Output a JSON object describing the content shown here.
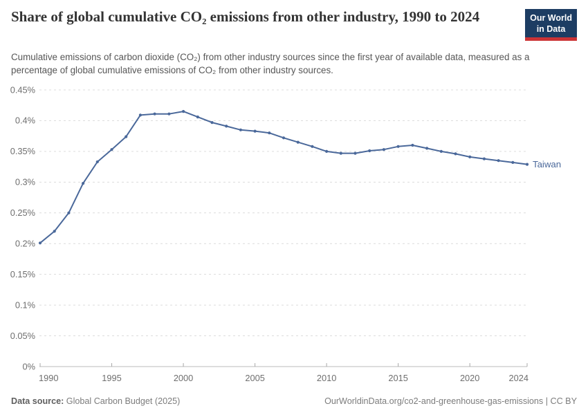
{
  "header": {
    "title": "Share of global cumulative CO₂ emissions from other industry, 1990 to 2024",
    "subtitle": "Cumulative emissions of carbon dioxide (CO₂) from other industry sources since the first year of available data, measured as a percentage of global cumulative emissions of CO₂ from other industry sources."
  },
  "logo": {
    "line1": "Our World",
    "line2": "in Data",
    "bg_color": "#1d3d63",
    "accent_color": "#cb3335"
  },
  "chart_data": {
    "type": "line",
    "title": "Share of global cumulative CO₂ emissions from other industry, 1990 to 2024",
    "xlabel": "",
    "ylabel": "",
    "unit": "%",
    "xlim": [
      1990,
      2024
    ],
    "ylim": [
      0,
      0.45
    ],
    "grid": "horizontal-dashed",
    "legend_position": "end-of-line-label",
    "x": [
      1990,
      1991,
      1992,
      1993,
      1994,
      1995,
      1996,
      1997,
      1998,
      1999,
      2000,
      2001,
      2002,
      2003,
      2004,
      2005,
      2006,
      2007,
      2008,
      2009,
      2010,
      2011,
      2012,
      2013,
      2014,
      2015,
      2016,
      2017,
      2018,
      2019,
      2020,
      2021,
      2022,
      2023,
      2024
    ],
    "x_ticks": [
      1990,
      1995,
      2000,
      2005,
      2010,
      2015,
      2020,
      2024
    ],
    "y_ticks": [
      0,
      0.05,
      0.1,
      0.15,
      0.2,
      0.25,
      0.3,
      0.35,
      0.4,
      0.45
    ],
    "y_tick_labels": [
      "0%",
      "0.05%",
      "0.1%",
      "0.15%",
      "0.2%",
      "0.25%",
      "0.3%",
      "0.35%",
      "0.4%",
      "0.45%"
    ],
    "series": [
      {
        "name": "Taiwan",
        "color": "#4a689a",
        "values": [
          0.201,
          0.22,
          0.25,
          0.298,
          0.333,
          0.353,
          0.374,
          0.409,
          0.411,
          0.411,
          0.415,
          0.406,
          0.397,
          0.391,
          0.385,
          0.383,
          0.38,
          0.372,
          0.365,
          0.358,
          0.35,
          0.347,
          0.347,
          0.351,
          0.353,
          0.358,
          0.36,
          0.355,
          0.35,
          0.346,
          0.341,
          0.338,
          0.335,
          0.332,
          0.329
        ]
      }
    ],
    "colors": {
      "gridline": "#dcdcdc",
      "axis_line": "#bbbbbb",
      "tick_mark": "#a8a8a8",
      "tick_label": "#6e6e6e"
    }
  },
  "footer": {
    "datasource_label": "Data source:",
    "datasource_value": " Global Carbon Budget (2025)",
    "right_text": "OurWorldinData.org/co2-and-greenhouse-gas-emissions | CC BY"
  }
}
